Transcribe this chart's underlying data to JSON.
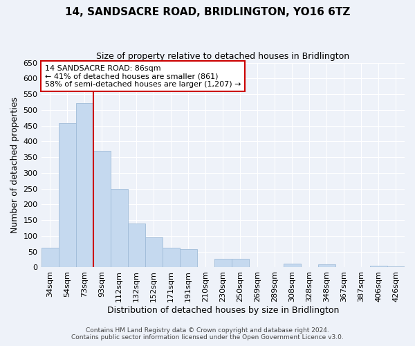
{
  "title": "14, SANDSACRE ROAD, BRIDLINGTON, YO16 6TZ",
  "subtitle": "Size of property relative to detached houses in Bridlington",
  "xlabel": "Distribution of detached houses by size in Bridlington",
  "ylabel": "Number of detached properties",
  "bar_labels": [
    "34sqm",
    "54sqm",
    "73sqm",
    "93sqm",
    "112sqm",
    "132sqm",
    "152sqm",
    "171sqm",
    "191sqm",
    "210sqm",
    "230sqm",
    "250sqm",
    "269sqm",
    "289sqm",
    "308sqm",
    "328sqm",
    "348sqm",
    "367sqm",
    "387sqm",
    "406sqm",
    "426sqm"
  ],
  "bar_values": [
    62,
    457,
    522,
    370,
    250,
    140,
    95,
    62,
    58,
    0,
    28,
    28,
    0,
    0,
    12,
    0,
    10,
    0,
    0,
    5,
    3
  ],
  "bar_color": "#c5d9ef",
  "bar_edge_color": "#a0bcd8",
  "vline_color": "#cc0000",
  "annotation_lines": [
    "14 SANDSACRE ROAD: 86sqm",
    "← 41% of detached houses are smaller (861)",
    "58% of semi-detached houses are larger (1,207) →"
  ],
  "annotation_box_color": "#ffffff",
  "annotation_box_edge": "#cc0000",
  "ylim": [
    0,
    650
  ],
  "yticks": [
    0,
    50,
    100,
    150,
    200,
    250,
    300,
    350,
    400,
    450,
    500,
    550,
    600,
    650
  ],
  "footer_line1": "Contains HM Land Registry data © Crown copyright and database right 2024.",
  "footer_line2": "Contains public sector information licensed under the Open Government Licence v3.0.",
  "bg_color": "#eef2f9",
  "grid_color": "#ffffff",
  "title_fontsize": 11,
  "subtitle_fontsize": 9,
  "xlabel_fontsize": 9,
  "ylabel_fontsize": 9,
  "tick_fontsize": 8,
  "annotation_fontsize": 8,
  "footer_fontsize": 6.5
}
